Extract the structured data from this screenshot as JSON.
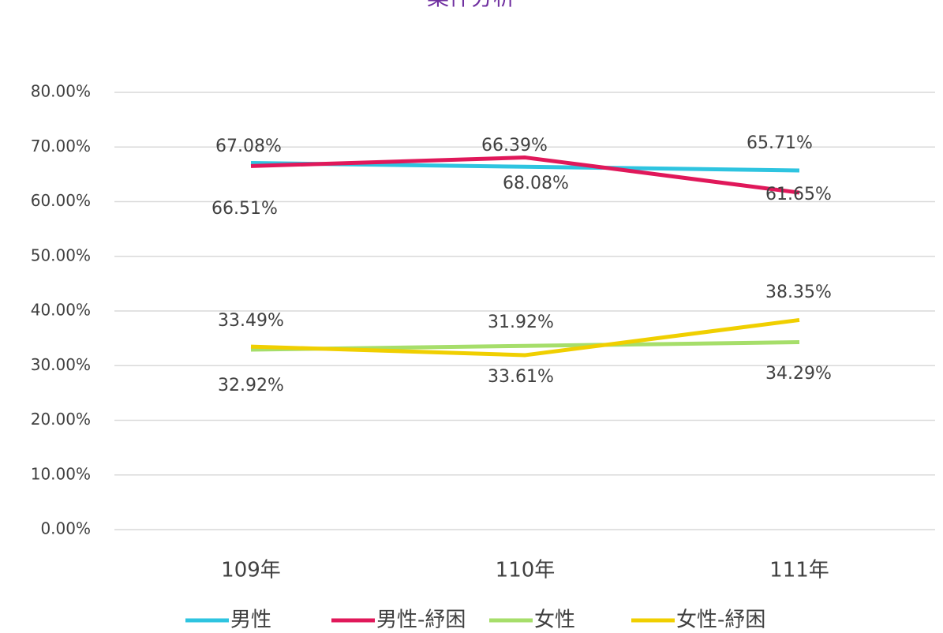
{
  "chart_data": {
    "type": "line",
    "title": "案件分析",
    "categories": [
      "109年",
      "110年",
      "111年"
    ],
    "series": [
      {
        "name": "男性",
        "color": "#2ec4e0",
        "values": [
          67.08,
          66.39,
          65.71
        ],
        "value_labels": [
          "67.08%",
          "66.39%",
          "65.71%"
        ]
      },
      {
        "name": "男性-紓困",
        "color": "#e0185a",
        "values": [
          66.51,
          68.08,
          61.65
        ],
        "value_labels": [
          "66.51%",
          "68.08%",
          "61.65%"
        ]
      },
      {
        "name": "女性",
        "color": "#a6de6a",
        "values": [
          32.92,
          33.61,
          34.29
        ],
        "value_labels": [
          "32.92%",
          "33.61%",
          "34.29%"
        ]
      },
      {
        "name": "女性-紓困",
        "color": "#f0cf00",
        "values": [
          33.49,
          31.92,
          38.35
        ],
        "value_labels": [
          "33.49%",
          "31.92%",
          "38.35%"
        ]
      }
    ],
    "ylim": [
      0,
      80
    ],
    "yticks": [
      {
        "value": 0,
        "label": "0.00%"
      },
      {
        "value": 10,
        "label": "10.00%"
      },
      {
        "value": 20,
        "label": "20.00%"
      },
      {
        "value": 30,
        "label": "30.00%"
      },
      {
        "value": 40,
        "label": "40.00%"
      },
      {
        "value": 50,
        "label": "50.00%"
      },
      {
        "value": 60,
        "label": "60.00%"
      },
      {
        "value": 70,
        "label": "70.00%"
      },
      {
        "value": 80,
        "label": "80.00%"
      }
    ],
    "grid": true,
    "legend": "bottom"
  }
}
